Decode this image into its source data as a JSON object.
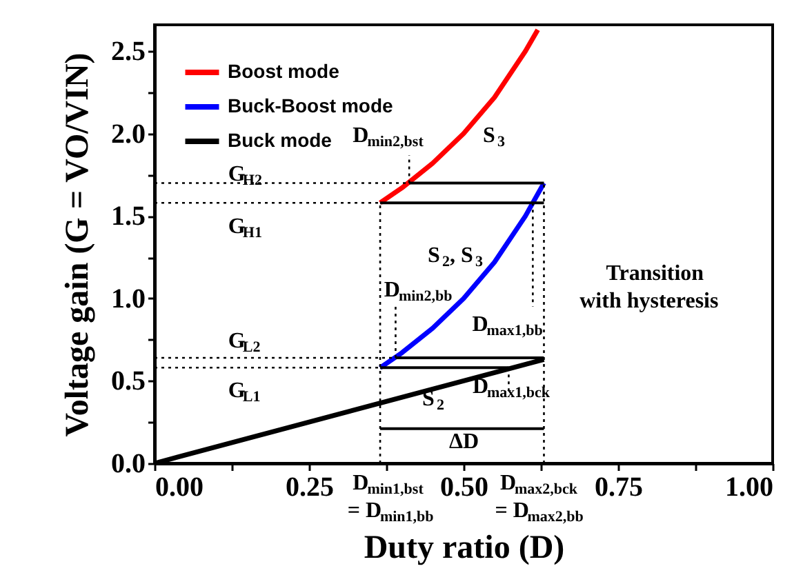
{
  "chart_data": {
    "type": "line",
    "xlabel": "Duty ratio (D)",
    "ylabel": "Voltage gain (G = VO/VIN)",
    "xlim": [
      0,
      1.0
    ],
    "ylim": [
      0,
      2.66
    ],
    "xticks": [
      {
        "value": 0,
        "label": "0.00"
      },
      {
        "value": 0.125,
        "label": null
      },
      0.25,
      {
        "value": 0.375,
        "label": null
      },
      {
        "value": 0.5,
        "label": "0.50"
      },
      {
        "value": 0.625,
        "label": null
      },
      0.75,
      {
        "value": 0.875,
        "label": null
      },
      {
        "value": 1.0,
        "label": "1.00"
      }
    ],
    "yticks": [
      {
        "value": 0,
        "label": "0.0"
      },
      {
        "value": 0.25,
        "label": null
      },
      0.5,
      {
        "value": 0.75,
        "label": null
      },
      {
        "value": 1.0,
        "label": "1.0"
      },
      {
        "value": 1.25,
        "label": null
      },
      1.5,
      {
        "value": 1.75,
        "label": null
      },
      {
        "value": 2.0,
        "label": "2.0"
      },
      {
        "value": 2.25,
        "label": null
      },
      2.5
    ],
    "grid": false,
    "legend": "top left",
    "series": [
      {
        "name": "Boost mode",
        "color": "#ff0000",
        "line_style": "solid",
        "x": [
          0.365,
          0.4,
          0.45,
          0.5,
          0.55,
          0.6,
          0.62
        ],
        "values": [
          1.58,
          1.67,
          1.82,
          2.0,
          2.22,
          2.5,
          2.63
        ]
      },
      {
        "name": "Buck-Boost mode",
        "color": "#0000ff",
        "line_style": "solid",
        "x": [
          0.365,
          0.4,
          0.45,
          0.5,
          0.55,
          0.6,
          0.63
        ],
        "values": [
          0.58,
          0.67,
          0.82,
          1.0,
          1.22,
          1.5,
          1.7
        ]
      },
      {
        "name": "Buck mode",
        "color": "#000000",
        "line_style": "solid",
        "x": [
          0,
          0.63
        ],
        "values": [
          0,
          0.63
        ]
      },
      {
        "color": "#000000",
        "line_style": "solid",
        "x": [
          0.63,
          0.412
        ],
        "values": [
          1.7,
          1.7
        ]
      },
      {
        "color": "#000000",
        "line_style": "solid",
        "x": [
          0.365,
          0.63
        ],
        "values": [
          1.58,
          1.58
        ]
      },
      {
        "color": "#000000",
        "line_style": "solid",
        "x": [
          0.63,
          0.39
        ],
        "values": [
          0.64,
          0.64
        ]
      },
      {
        "color": "#000000",
        "line_style": "solid",
        "x": [
          0.365,
          0.573
        ],
        "values": [
          0.58,
          0.58
        ]
      },
      {
        "color": "#000000",
        "line_style": "solid",
        "x": [
          0.365,
          0.63
        ],
        "values": [
          0.21,
          0.21
        ]
      },
      {
        "color": "#000000",
        "line_style": "dotted",
        "x": [
          0,
          0.412
        ],
        "values": [
          1.7,
          1.7
        ]
      },
      {
        "color": "#000000",
        "line_style": "dotted",
        "x": [
          0,
          0.365
        ],
        "values": [
          1.58,
          1.58
        ]
      },
      {
        "color": "#000000",
        "line_style": "dotted",
        "x": [
          0,
          0.39
        ],
        "values": [
          0.64,
          0.64
        ]
      },
      {
        "color": "#000000",
        "line_style": "dotted",
        "x": [
          0,
          0.365
        ],
        "values": [
          0.58,
          0.58
        ]
      },
      {
        "color": "#000000",
        "line_style": "dotted",
        "x": [
          0.365,
          0.365
        ],
        "values": [
          0,
          1.58
        ]
      },
      {
        "color": "#000000",
        "line_style": "dotted",
        "x": [
          0.63,
          0.63
        ],
        "values": [
          0,
          1.7
        ]
      },
      {
        "color": "#000000",
        "line_style": "dotted",
        "x": [
          0.412,
          0.412
        ],
        "values": [
          1.7,
          1.87
        ]
      },
      {
        "color": "#000000",
        "line_style": "dotted",
        "x": [
          0.39,
          0.39
        ],
        "values": [
          0.64,
          0.95
        ]
      },
      {
        "color": "#000000",
        "line_style": "dotted",
        "x": [
          0.612,
          0.612
        ],
        "values": [
          1.58,
          0.95
        ]
      },
      {
        "color": "#000000",
        "line_style": "dotted",
        "x": [
          0.573,
          0.573
        ],
        "values": [
          0.58,
          0.42
        ]
      }
    ],
    "annotations": [
      "D$_{min2,bst}$",
      "S$_{3}$",
      "G$_{H2}$",
      "G$_{H1}$",
      "S$_{2}$, S$_{3}$",
      "D$_{min2,bb}$",
      "D$_{max1,bb}$",
      "Transition\nwith hysteresis",
      "G$_{L2}$",
      "G$_{L1}$",
      "D$_{max1,bck}$",
      "S$_{2}$",
      "ΔD",
      "D$_{min1,bst}$\n= D$_{min1,bb}$",
      "D$_{max2,bck}$\n= D$_{max2,bb}$"
    ]
  }
}
